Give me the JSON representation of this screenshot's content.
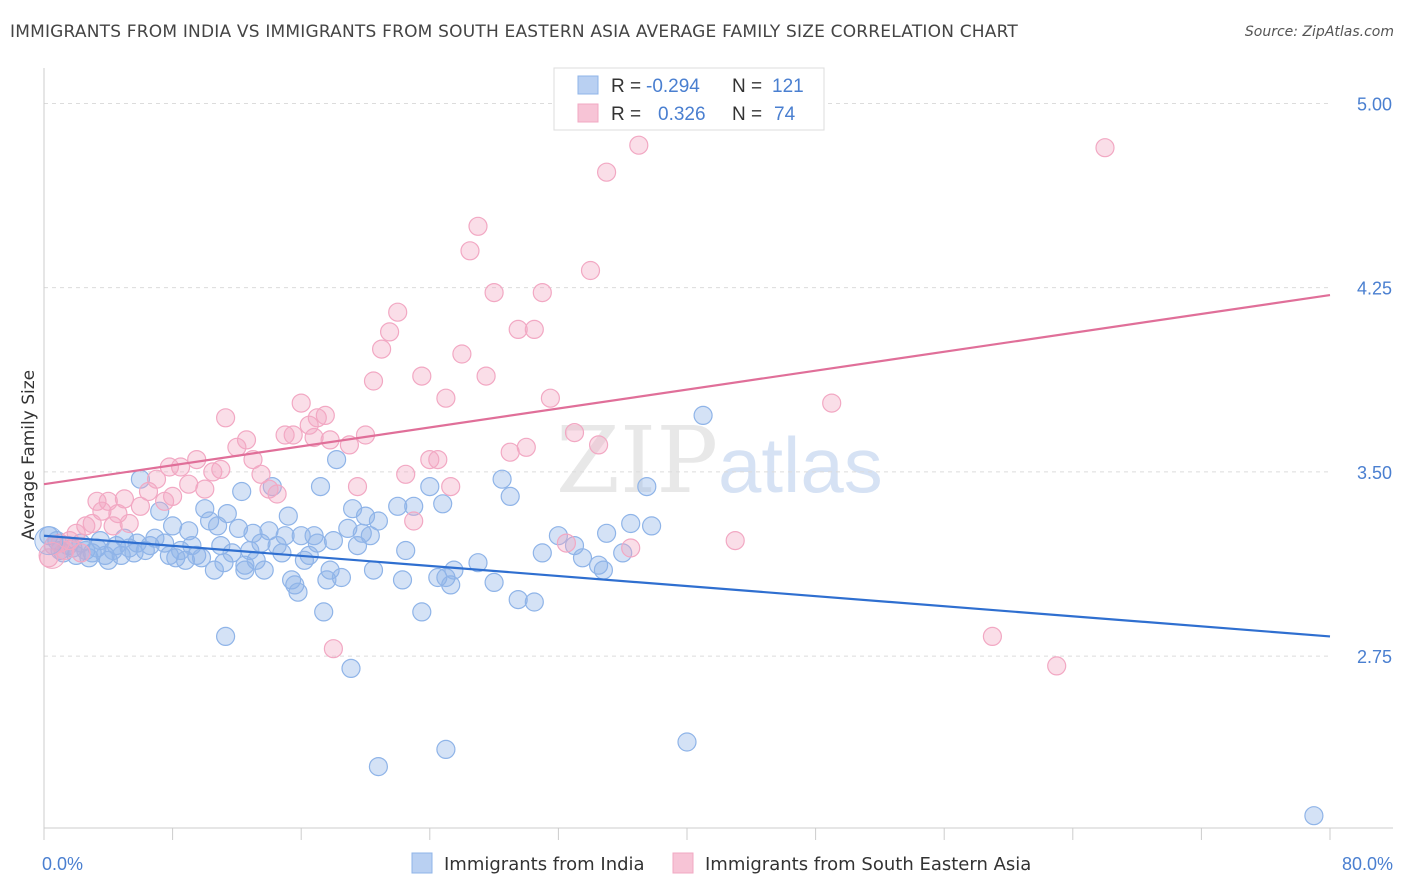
{
  "title": "IMMIGRANTS FROM INDIA VS IMMIGRANTS FROM SOUTH EASTERN ASIA AVERAGE FAMILY SIZE CORRELATION CHART",
  "source": "Source: ZipAtlas.com",
  "watermark": {
    "zip": "ZIP",
    "atlas": "atlas"
  },
  "stats": [
    {
      "r_label": "R =",
      "r_value": "-0.294",
      "n_label": "N =",
      "n_value": "121",
      "color": "#4a7fd0"
    },
    {
      "r_label": "R =",
      "r_value": "0.326",
      "n_label": "N =",
      "n_value": "74",
      "color": "#e06f99"
    }
  ],
  "chart_data": {
    "type": "scatter",
    "ylabel": "Average Family Size",
    "x_ticks": [
      "0.0%",
      "80.0%"
    ],
    "y_ticks": [
      "5.00",
      "4.25",
      "3.50",
      "2.75"
    ],
    "y_tick_values": [
      5.0,
      4.25,
      3.5,
      2.75
    ],
    "xlim": [
      0,
      80
    ],
    "ylim": [
      2.05,
      5.12
    ],
    "grid": true,
    "legend_position": "bottom",
    "series": [
      {
        "name": "Immigrants from India",
        "color": "#8fb4e8",
        "line_color": "#2f6fd0",
        "trend": [
          [
            0,
            3.24
          ],
          [
            80,
            2.83
          ]
        ],
        "points": [
          [
            0.3,
            3.24
          ],
          [
            0.8,
            3.22
          ],
          [
            1,
            3.18
          ],
          [
            1.2,
            3.17
          ],
          [
            1.5,
            3.2
          ],
          [
            1.8,
            3.19
          ],
          [
            2,
            3.16
          ],
          [
            2.3,
            3.21
          ],
          [
            2.6,
            3.18
          ],
          [
            2.8,
            3.15
          ],
          [
            3,
            3.17
          ],
          [
            3.3,
            3.19
          ],
          [
            3.5,
            3.22
          ],
          [
            3.8,
            3.16
          ],
          [
            4,
            3.14
          ],
          [
            4.3,
            3.18
          ],
          [
            4.5,
            3.2
          ],
          [
            4.8,
            3.16
          ],
          [
            5,
            3.23
          ],
          [
            5.3,
            3.19
          ],
          [
            5.6,
            3.17
          ],
          [
            5.8,
            3.21
          ],
          [
            6,
            3.47
          ],
          [
            6.3,
            3.18
          ],
          [
            6.6,
            3.2
          ],
          [
            6.9,
            3.23
          ],
          [
            7.2,
            3.34
          ],
          [
            7.5,
            3.21
          ],
          [
            7.8,
            3.16
          ],
          [
            8,
            3.28
          ],
          [
            8.2,
            3.15
          ],
          [
            8.5,
            3.18
          ],
          [
            8.8,
            3.14
          ],
          [
            9,
            3.26
          ],
          [
            9.2,
            3.2
          ],
          [
            9.5,
            3.16
          ],
          [
            9.8,
            3.15
          ],
          [
            10,
            3.35
          ],
          [
            10.3,
            3.3
          ],
          [
            10.6,
            3.1
          ],
          [
            10.8,
            3.28
          ],
          [
            11,
            3.2
          ],
          [
            11.2,
            3.13
          ],
          [
            11.4,
            3.33
          ],
          [
            11.7,
            3.17
          ],
          [
            11.3,
            2.83
          ],
          [
            12.1,
            3.27
          ],
          [
            12.3,
            3.42
          ],
          [
            12.5,
            3.12
          ],
          [
            12.5,
            3.1
          ],
          [
            12.8,
            3.18
          ],
          [
            13,
            3.25
          ],
          [
            13.2,
            3.14
          ],
          [
            13.5,
            3.21
          ],
          [
            13.7,
            3.1
          ],
          [
            14,
            3.26
          ],
          [
            14.2,
            3.44
          ],
          [
            14.5,
            3.2
          ],
          [
            14.8,
            3.17
          ],
          [
            15,
            3.24
          ],
          [
            15.2,
            3.32
          ],
          [
            15.4,
            3.06
          ],
          [
            15.6,
            3.04
          ],
          [
            15.8,
            3.01
          ],
          [
            16,
            3.24
          ],
          [
            16.2,
            3.14
          ],
          [
            16.5,
            3.16
          ],
          [
            16.8,
            3.24
          ],
          [
            17,
            3.21
          ],
          [
            17.2,
            3.44
          ],
          [
            17.4,
            2.93
          ],
          [
            17.6,
            3.06
          ],
          [
            17.8,
            3.1
          ],
          [
            18,
            3.22
          ],
          [
            18.2,
            3.55
          ],
          [
            18.5,
            3.07
          ],
          [
            18.9,
            3.27
          ],
          [
            19.2,
            3.35
          ],
          [
            19.5,
            3.2
          ],
          [
            19.8,
            3.25
          ],
          [
            20,
            3.32
          ],
          [
            20.3,
            3.24
          ],
          [
            20.5,
            3.1
          ],
          [
            20.8,
            3.3
          ],
          [
            19.1,
            2.7
          ],
          [
            20.8,
            2.3
          ],
          [
            22,
            3.36
          ],
          [
            22.5,
            3.18
          ],
          [
            22.3,
            3.06
          ],
          [
            23,
            3.36
          ],
          [
            23.5,
            2.93
          ],
          [
            24,
            3.44
          ],
          [
            24.5,
            3.07
          ],
          [
            24.8,
            3.37
          ],
          [
            25,
            3.07
          ],
          [
            25.3,
            3.04
          ],
          [
            25.5,
            3.1
          ],
          [
            25,
            2.37
          ],
          [
            27,
            3.13
          ],
          [
            28,
            3.05
          ],
          [
            28.5,
            3.47
          ],
          [
            29,
            3.4
          ],
          [
            29.5,
            2.98
          ],
          [
            30.5,
            2.97
          ],
          [
            31,
            3.17
          ],
          [
            32,
            3.24
          ],
          [
            33,
            3.2
          ],
          [
            33.5,
            3.15
          ],
          [
            34.5,
            3.12
          ],
          [
            34.8,
            3.1
          ],
          [
            35,
            3.25
          ],
          [
            36,
            3.17
          ],
          [
            36.5,
            3.29
          ],
          [
            37.5,
            3.44
          ],
          [
            37.8,
            3.28
          ],
          [
            40,
            2.4
          ],
          [
            41,
            3.73
          ],
          [
            79,
            2.1
          ]
        ]
      },
      {
        "name": "Immigrants from South Eastern Asia",
        "color": "#f2a8c3",
        "line_color": "#e06f99",
        "trend": [
          [
            0,
            3.45
          ],
          [
            80,
            4.22
          ]
        ],
        "points": [
          [
            0.3,
            3.15
          ],
          [
            0.6,
            3.2
          ],
          [
            1,
            3.21
          ],
          [
            1.3,
            3.18
          ],
          [
            1.6,
            3.22
          ],
          [
            2,
            3.25
          ],
          [
            2.3,
            3.17
          ],
          [
            2.6,
            3.28
          ],
          [
            3,
            3.29
          ],
          [
            3.3,
            3.38
          ],
          [
            3.6,
            3.34
          ],
          [
            4,
            3.38
          ],
          [
            4.3,
            3.28
          ],
          [
            4.6,
            3.33
          ],
          [
            5,
            3.39
          ],
          [
            5.3,
            3.29
          ],
          [
            6,
            3.36
          ],
          [
            6.5,
            3.42
          ],
          [
            7,
            3.47
          ],
          [
            7.5,
            3.38
          ],
          [
            7.8,
            3.52
          ],
          [
            8,
            3.4
          ],
          [
            8.5,
            3.52
          ],
          [
            9,
            3.45
          ],
          [
            9.5,
            3.55
          ],
          [
            10,
            3.43
          ],
          [
            10.5,
            3.5
          ],
          [
            11,
            3.51
          ],
          [
            11.3,
            3.72
          ],
          [
            12,
            3.6
          ],
          [
            12.6,
            3.63
          ],
          [
            13,
            3.55
          ],
          [
            13.5,
            3.49
          ],
          [
            14,
            3.43
          ],
          [
            14.5,
            3.41
          ],
          [
            15,
            3.65
          ],
          [
            15.5,
            3.65
          ],
          [
            16,
            3.78
          ],
          [
            16.5,
            3.69
          ],
          [
            16.8,
            3.64
          ],
          [
            17,
            3.72
          ],
          [
            17.5,
            3.73
          ],
          [
            17.8,
            3.63
          ],
          [
            18,
            2.78
          ],
          [
            19,
            3.61
          ],
          [
            19.5,
            3.44
          ],
          [
            20,
            3.65
          ],
          [
            20.5,
            3.87
          ],
          [
            21,
            4.0
          ],
          [
            21.5,
            4.07
          ],
          [
            22,
            4.15
          ],
          [
            22.5,
            3.49
          ],
          [
            23,
            3.3
          ],
          [
            23.5,
            3.89
          ],
          [
            24,
            3.55
          ],
          [
            24.5,
            3.55
          ],
          [
            25,
            3.8
          ],
          [
            25.3,
            3.44
          ],
          [
            26,
            3.98
          ],
          [
            26.5,
            4.4
          ],
          [
            27,
            4.5
          ],
          [
            27.5,
            3.89
          ],
          [
            28,
            4.23
          ],
          [
            29,
            3.58
          ],
          [
            29.5,
            4.08
          ],
          [
            30,
            3.6
          ],
          [
            30.5,
            4.08
          ],
          [
            31,
            4.23
          ],
          [
            31.5,
            3.8
          ],
          [
            32.5,
            3.21
          ],
          [
            33,
            3.66
          ],
          [
            34,
            4.32
          ],
          [
            34.5,
            3.61
          ],
          [
            35,
            4.72
          ],
          [
            36.5,
            3.19
          ],
          [
            37,
            4.83
          ],
          [
            43,
            3.22
          ],
          [
            49,
            3.78
          ],
          [
            59,
            2.83
          ],
          [
            63,
            2.71
          ],
          [
            66,
            4.82
          ]
        ]
      }
    ]
  }
}
